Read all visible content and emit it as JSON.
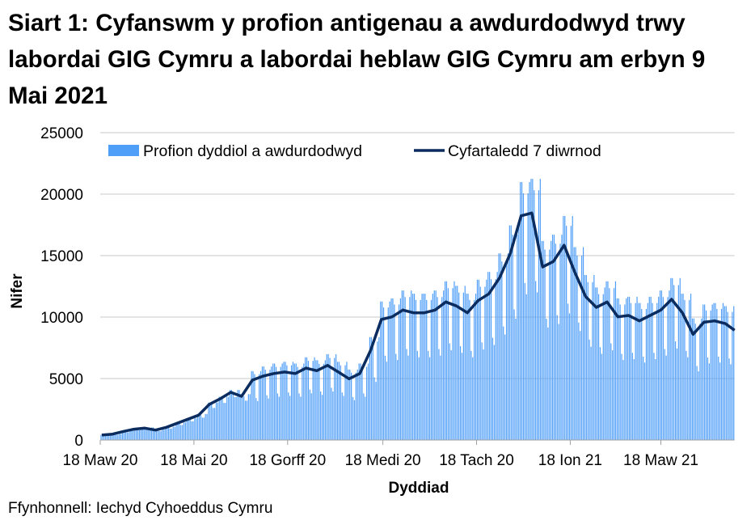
{
  "chart_data": {
    "type": "bar+line",
    "title": "Siart 1: Cyfanswm y profion antigenau a awdurdodwyd trwy labordai GIG Cymru a labordai heblaw GIG Cymru am erbyn 9 Mai 2021",
    "xlabel": "Dyddiad",
    "ylabel": "Nifer",
    "ylim": [
      0,
      25000
    ],
    "yticks": [
      "0",
      "5000",
      "10000",
      "15000",
      "20000",
      "25000"
    ],
    "ytick_values": [
      0,
      5000,
      10000,
      15000,
      20000,
      25000
    ],
    "xticks": [
      "18 Maw 20",
      "18 Mai 20",
      "18 Gorff 20",
      "18 Medi 20",
      "18 Tach 20",
      "18 Ion 21",
      "18 Maw 21"
    ],
    "xtick_days_from_first_date": [
      0,
      61,
      122,
      184,
      245,
      306,
      365
    ],
    "first_date": "2020-03-18",
    "grid": true,
    "legend_placement": "top",
    "colors": {
      "bars": "#4f9ef7",
      "line": "#0b2c5f",
      "grid": "#c8c8c8"
    },
    "series": [
      {
        "name": "Profion dyddiol a awdurdodwyd",
        "type": "bar",
        "interval_days": 1,
        "values": [
          430,
          430,
          410,
          370,
          370,
          430,
          430,
          500,
          500,
          480,
          430,
          430,
          500,
          500,
          740,
          740,
          700,
          630,
          630,
          740,
          740,
          920,
          920,
          880,
          790,
          790,
          920,
          920,
          1020,
          1020,
          970,
          870,
          870,
          1020,
          1020,
          850,
          850,
          810,
          730,
          730,
          850,
          850,
          1080,
          1080,
          1030,
          930,
          930,
          1080,
          1080,
          1430,
          1430,
          1360,
          1220,
          1220,
          1430,
          1430,
          1770,
          1770,
          1690,
          1520,
          1520,
          1770,
          1770,
          2120,
          2120,
          2020,
          1820,
          1820,
          2120,
          2120,
          3050,
          3050,
          2900,
          2610,
          2610,
          3050,
          3050,
          3520,
          3520,
          3350,
          3020,
          3020,
          3520,
          3520,
          4070,
          4070,
          3880,
          3490,
          3490,
          4070,
          4070,
          3730,
          3730,
          3550,
          3200,
          3200,
          3730,
          3730,
          5600,
          5600,
          5360,
          3410,
          3170,
          5360,
          5600,
          5980,
          5980,
          5720,
          3640,
          3380,
          5720,
          5980,
          6220,
          6220,
          5950,
          3790,
          3520,
          5950,
          6220,
          6360,
          6360,
          6080,
          3870,
          3590,
          6080,
          6360,
          6220,
          6220,
          5950,
          3790,
          3520,
          5950,
          6220,
          6730,
          6730,
          6440,
          4100,
          3800,
          6440,
          6730,
          6490,
          6490,
          6200,
          3950,
          3670,
          6200,
          6490,
          6980,
          6980,
          6680,
          4250,
          3950,
          6680,
          6980,
          6360,
          6360,
          6080,
          3870,
          3590,
          6080,
          6360,
          5730,
          5730,
          5480,
          3490,
          3240,
          5480,
          5730,
          6220,
          6220,
          5950,
          3790,
          3520,
          5950,
          6220,
          8370,
          8370,
          8010,
          5100,
          4730,
          8010,
          8370,
          11270,
          11270,
          10780,
          6860,
          6370,
          10780,
          11270,
          11520,
          11520,
          11020,
          7010,
          6510,
          11020,
          11520,
          12160,
          12160,
          11630,
          7400,
          6870,
          11630,
          12160,
          11900,
          11900,
          11390,
          7250,
          6730,
          11390,
          11900,
          11900,
          11900,
          11390,
          7250,
          6730,
          11390,
          11900,
          12160,
          12160,
          11630,
          7400,
          6870,
          11630,
          12160,
          12910,
          12910,
          12350,
          7860,
          7300,
          12350,
          12910,
          12540,
          12540,
          11990,
          7630,
          7090,
          11990,
          12540,
          11900,
          11900,
          11390,
          7250,
          6730,
          11390,
          11900,
          13040,
          13040,
          12470,
          7940,
          7370,
          12470,
          13040,
          13670,
          13670,
          13080,
          8320,
          7730,
          13080,
          13670,
          15180,
          15180,
          14520,
          9240,
          8580,
          14520,
          15180,
          17460,
          17460,
          16700,
          10630,
          9870,
          16700,
          17460,
          20980,
          20980,
          20060,
          12770,
          11860,
          20060,
          20980,
          21240,
          21240,
          20320,
          12930,
          12010,
          20320,
          21240,
          16190,
          16190,
          15490,
          9860,
          9150,
          15490,
          16190,
          16700,
          16700,
          15970,
          10160,
          9440,
          15970,
          16700,
          18220,
          18220,
          17420,
          11090,
          10300,
          17420,
          18220,
          15690,
          15690,
          15000,
          9550,
          8870,
          15000,
          15690,
          13420,
          13420,
          12840,
          8170,
          7590,
          12840,
          13420,
          12410,
          12410,
          11870,
          7550,
          7010,
          11870,
          12410,
          12910,
          12910,
          12350,
          7860,
          7300,
          12350,
          12910,
          11520,
          11520,
          11020,
          7010,
          6510,
          11020,
          11520,
          11650,
          11650,
          11140,
          7090,
          6580,
          11140,
          11650,
          11140,
          11140,
          10660,
          6780,
          6300,
          10660,
          11140,
          11650,
          11650,
          11140,
          7090,
          6580,
          11140,
          11650,
          12160,
          12160,
          11630,
          7400,
          6870,
          11630,
          12160,
          13170,
          13170,
          12600,
          8020,
          7440,
          12600,
          13170,
          11900,
          11900,
          11390,
          7250,
          6730,
          11390,
          11900,
          9890,
          9890,
          9460,
          6020,
          5590,
          9460,
          9890,
          11020,
          11020,
          10540,
          6710,
          6230,
          10540,
          11020,
          11140,
          11140,
          10660,
          6780,
          6300,
          10660,
          11140,
          10890,
          10890,
          10420,
          6630,
          6160,
          10420,
          10890
        ]
      },
      {
        "name": "Cyfartaledd 7 diwrnod",
        "type": "line",
        "interval_days": 7,
        "values": [
          410,
          480,
          700,
          880,
          970,
          810,
          1030,
          1360,
          1690,
          2020,
          2900,
          3350,
          3880,
          3550,
          4870,
          5200,
          5410,
          5530,
          5410,
          5850,
          5640,
          6070,
          5530,
          4980,
          5410,
          7280,
          9800,
          10020,
          10570,
          10350,
          10350,
          10570,
          11230,
          10900,
          10350,
          11340,
          11890,
          13200,
          15180,
          18240,
          18470,
          14080,
          14520,
          15840,
          13640,
          11670,
          10790,
          11230,
          10020,
          10130,
          9690,
          10130,
          10570,
          11450,
          10350,
          8600,
          9580,
          9690,
          9470,
          8930
        ]
      }
    ]
  },
  "source": "Ffynhonnell: Iechyd Cyhoeddus Cymru"
}
